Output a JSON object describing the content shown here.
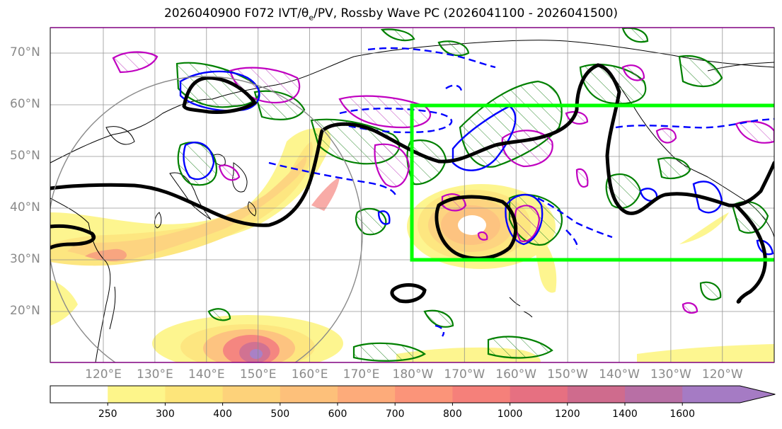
{
  "title": "2026040900 F072 IVT/θ",
  "title_sub": "e",
  "title_rest": "/PV, Rossby Wave PC (2026041100 - 2026041500)",
  "lat_labels": [
    "70°N",
    "60°N",
    "50°N",
    "40°N",
    "30°N",
    "20°N"
  ],
  "lon_labels": [
    "120°E",
    "130°E",
    "140°E",
    "150°E",
    "160°E",
    "170°E",
    "180°W",
    "170°W",
    "160°W",
    "150°W",
    "140°W",
    "130°W",
    "120°W"
  ],
  "colorbar": {
    "ticks": [
      "250",
      "300",
      "400",
      "500",
      "600",
      "700",
      "800",
      "1000",
      "1200",
      "1400",
      "1600"
    ],
    "colors": [
      "#fdf58a",
      "#fde57a",
      "#fdd27a",
      "#fdc07a",
      "#fdab7a",
      "#fb9479",
      "#f5807a",
      "#e67081",
      "#cf6b8d",
      "#b86fa5",
      "#a57bc4"
    ]
  },
  "colors": {
    "highlight_box": "#00ff00",
    "contour_black": "#000000",
    "contour_blue": "#0000ff",
    "contour_green": "#008000",
    "contour_magenta": "#c000c0",
    "coast": "#000000",
    "frame": "#800080"
  }
}
